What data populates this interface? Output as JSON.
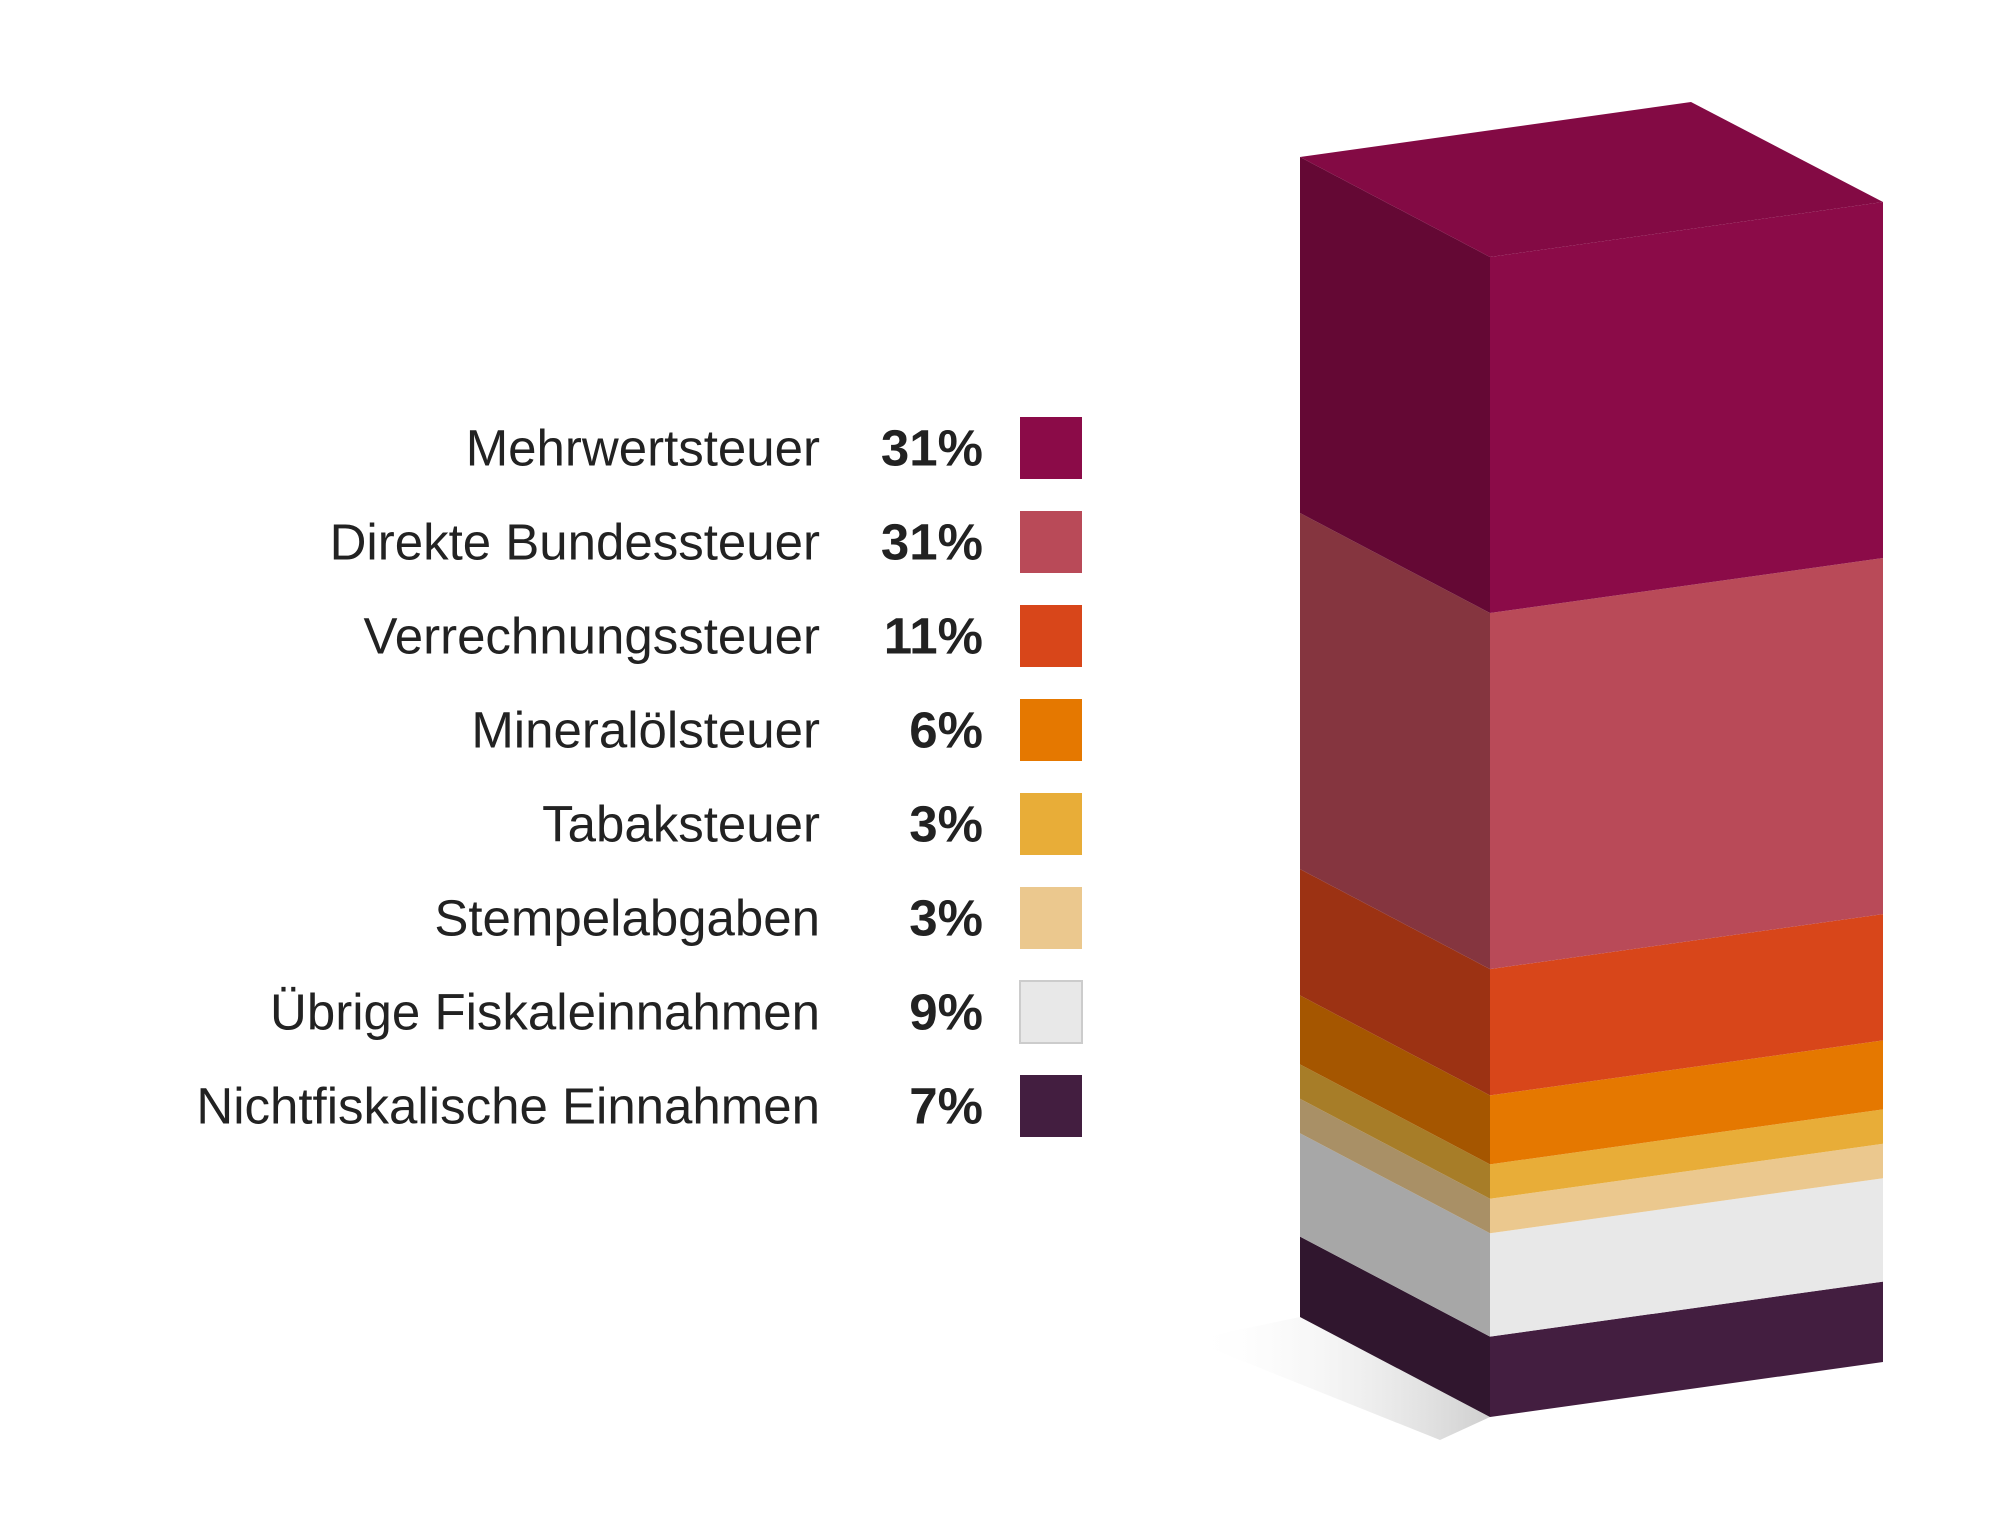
{
  "chart_data": {
    "type": "stacked-column-3d",
    "categories": [
      "Mehrwertsteuer",
      "Direkte Bundessteuer",
      "Verrechnungssteuer",
      "Mineralölsteuer",
      "Tabaksteuer",
      "Stempelabgaben",
      "Übrige Fiskaleinnahmen",
      "Nichtfiskalische Einnahmen"
    ],
    "values": [
      31,
      31,
      11,
      6,
      3,
      3,
      9,
      7
    ],
    "value_labels": [
      "31%",
      "31%",
      "11%",
      "6%",
      "3%",
      "3%",
      "9%",
      "7%"
    ],
    "colors": [
      "#8b0b48",
      "#b94a58",
      "#d8461a",
      "#e57800",
      "#e8ad38",
      "#ebc88e",
      "#e8e8e8",
      "#431e40"
    ]
  }
}
